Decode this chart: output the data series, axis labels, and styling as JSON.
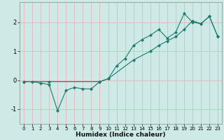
{
  "xlabel": "Humidex (Indice chaleur)",
  "bg_color": "#ceeae6",
  "grid_color": "#e8b4b8",
  "line_color": "#1a7a6e",
  "xmin": -0.5,
  "xmax": 23.5,
  "ymin": -1.5,
  "ymax": 2.7,
  "yticks": [
    -1,
    0,
    1,
    2
  ],
  "xticks": [
    0,
    1,
    2,
    3,
    4,
    5,
    6,
    7,
    8,
    9,
    10,
    11,
    12,
    13,
    14,
    15,
    16,
    17,
    18,
    19,
    20,
    21,
    22,
    23
  ],
  "data_x": [
    0,
    1,
    2,
    3,
    4,
    5,
    6,
    7,
    8,
    9,
    10,
    11,
    12,
    13,
    14,
    15,
    16,
    17,
    18,
    19,
    20,
    21,
    22,
    23
  ],
  "data_y": [
    -0.05,
    -0.05,
    -0.1,
    -0.15,
    -1.05,
    -0.35,
    -0.25,
    -0.3,
    -0.3,
    -0.05,
    0.05,
    0.5,
    0.75,
    1.2,
    1.4,
    1.55,
    1.75,
    1.45,
    1.65,
    2.3,
    2.0,
    1.95,
    2.2,
    1.5
  ],
  "line2_x": [
    0,
    3,
    9,
    10,
    13,
    15,
    16,
    17,
    18,
    19,
    20,
    21,
    22,
    23
  ],
  "line2_y": [
    -0.05,
    -0.05,
    -0.05,
    0.05,
    0.7,
    1.0,
    1.2,
    1.35,
    1.5,
    1.75,
    2.05,
    1.95,
    2.2,
    1.5
  ]
}
